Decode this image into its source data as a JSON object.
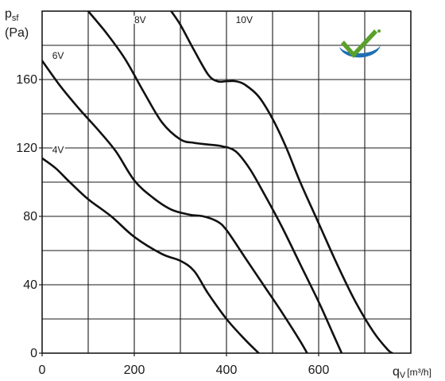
{
  "chart_data": {
    "type": "line",
    "ylabel": {
      "main": "p",
      "sub": "sf",
      "unit": "(Pa)"
    },
    "xlabel": {
      "main": "q",
      "sub": "V",
      "unit": "[m³/h]"
    },
    "xlim": [
      0,
      800
    ],
    "ylim": [
      0,
      200
    ],
    "xticks": [
      0,
      200,
      400,
      600
    ],
    "yticks": [
      0,
      40,
      80,
      120,
      160
    ],
    "grid": true,
    "series": [
      {
        "name": "4V",
        "x": [
          0,
          30,
          60,
          100,
          150,
          200,
          260,
          300,
          330,
          360,
          400,
          440,
          470
        ],
        "y": [
          114,
          108,
          100,
          90,
          80,
          68,
          58,
          54,
          48,
          35,
          20,
          8,
          0
        ]
      },
      {
        "name": "6V",
        "x": [
          0,
          40,
          80,
          120,
          160,
          200,
          240,
          280,
          320,
          350,
          380,
          400,
          440,
          480,
          520,
          560,
          575
        ],
        "y": [
          171,
          156,
          143,
          131,
          118,
          101,
          91,
          84,
          81,
          80,
          77,
          72,
          56,
          40,
          24,
          7,
          0
        ]
      },
      {
        "name": "8V",
        "x": [
          100,
          140,
          180,
          220,
          260,
          300,
          330,
          360,
          390,
          420,
          450,
          480,
          520,
          560,
          600,
          630,
          650
        ],
        "y": [
          200,
          187,
          172,
          153,
          135,
          125,
          123,
          122,
          121,
          118,
          108,
          94,
          74,
          52,
          30,
          12,
          0
        ]
      },
      {
        "name": "10V",
        "x": [
          280,
          300,
          330,
          360,
          380,
          400,
          420,
          440,
          470,
          500,
          530,
          560,
          600,
          640,
          680,
          720,
          750,
          760
        ],
        "y": [
          200,
          192,
          177,
          163,
          159,
          159,
          159,
          157,
          150,
          137,
          120,
          100,
          76,
          52,
          30,
          12,
          2,
          0
        ]
      }
    ],
    "curve_labels": [
      {
        "text": "4V",
        "x": 22,
        "y": 117
      },
      {
        "text": "6V",
        "x": 22,
        "y": 172
      },
      {
        "text": "8V",
        "x": 200,
        "y": 193
      },
      {
        "text": "10V",
        "x": 420,
        "y": 193
      }
    ],
    "logo": {
      "colors": {
        "check": "#5aa02c",
        "swoosh": "#1f6fb4"
      },
      "icon": "checkmark-logo"
    }
  }
}
